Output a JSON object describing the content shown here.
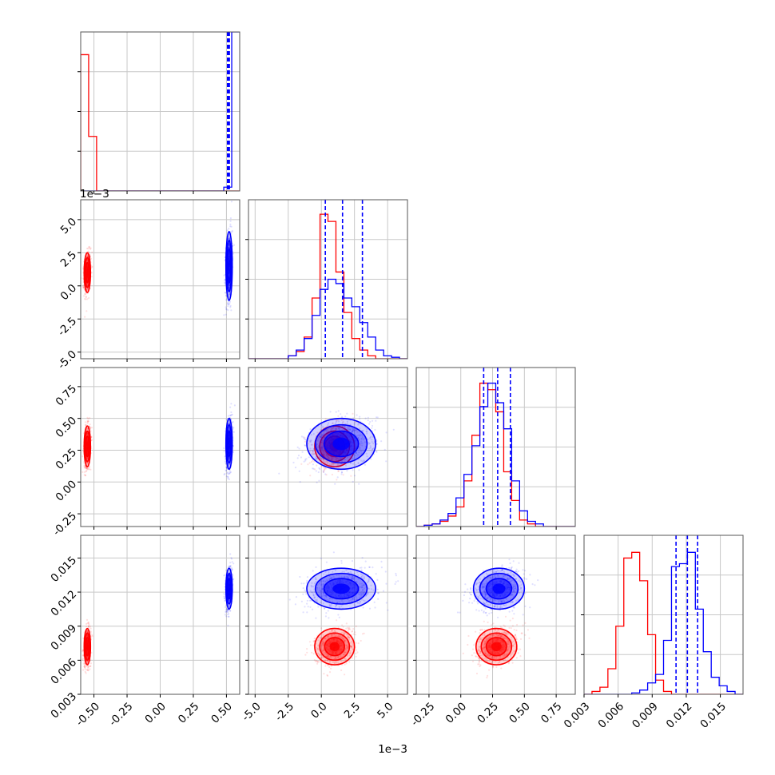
{
  "chart_data": {
    "type": "corner",
    "colors": {
      "red": "#ff0000",
      "blue": "#0000ff",
      "grid": "#c8c8c8",
      "axis": "#555555"
    },
    "grid": true,
    "series": [
      {
        "color": "red",
        "means": [
          -0.55,
          0.001,
          0.28,
          0.0072
        ],
        "sds": [
          0.012,
          0.00075,
          0.08,
          0.0008
        ]
      },
      {
        "color": "blue",
        "means": [
          0.52,
          0.0015,
          0.3,
          0.0123
        ],
        "sds": [
          0.012,
          0.0013,
          0.1,
          0.0009
        ]
      }
    ],
    "quantile_lines": {
      "color": "blue",
      "values": [
        [
          0.508,
          0.515,
          0.522
        ],
        [
          0.0003,
          0.0016,
          0.0031
        ],
        [
          0.18,
          0.29,
          0.39
        ],
        [
          0.0111,
          0.0121,
          0.013
        ]
      ]
    },
    "params": [
      {
        "range": [
          -0.6,
          0.6
        ],
        "ticks": [
          "-0.50",
          "-0.25",
          "0.00",
          "0.25",
          "0.50"
        ],
        "tick_values": [
          -0.5,
          -0.25,
          0.0,
          0.25,
          0.5
        ]
      },
      {
        "range": [
          -0.0055,
          0.0065
        ],
        "ticks": [
          "-5.0",
          "-2.5",
          "0.0",
          "2.5",
          "5.0"
        ],
        "tick_values": [
          -0.005,
          -0.0025,
          0.0,
          0.0025,
          0.005
        ],
        "offset": "1e−3"
      },
      {
        "range": [
          -0.35,
          0.9
        ],
        "ticks": [
          "-0.25",
          "0.00",
          "0.25",
          "0.50",
          "0.75"
        ],
        "tick_values": [
          -0.25,
          0.0,
          0.25,
          0.5,
          0.75
        ]
      },
      {
        "range": [
          0.003,
          0.017
        ],
        "ticks": [
          "0.003",
          "0.006",
          "0.009",
          "0.012",
          "0.015"
        ],
        "tick_values": [
          0.003,
          0.006,
          0.009,
          0.012,
          0.015
        ]
      }
    ],
    "histograms": [
      {
        "edges": [
          -0.6,
          -0.54,
          -0.48,
          -0.42,
          -0.36,
          -0.3,
          -0.24,
          -0.18,
          -0.12,
          -0.06,
          0.0,
          0.06,
          0.12,
          0.18,
          0.24,
          0.3,
          0.36,
          0.42,
          0.48,
          0.54,
          0.6
        ],
        "red": [
          180,
          72,
          0,
          0,
          0,
          0,
          0,
          0,
          0,
          0,
          0,
          0,
          0,
          0,
          0,
          0,
          0,
          0,
          0,
          0
        ],
        "blue": [
          0,
          0,
          0,
          0,
          0,
          0,
          0,
          0,
          0,
          0,
          0,
          0,
          0,
          0,
          0,
          0,
          0,
          0,
          5,
          210
        ],
        "ymax": 210
      },
      {
        "edges": [
          -0.0055,
          -0.0049,
          -0.0043,
          -0.0037,
          -0.0031,
          -0.0025,
          -0.0019,
          -0.0013,
          -0.0007,
          -0.0001,
          0.0005,
          0.0011,
          0.0017,
          0.0023,
          0.0029,
          0.0035,
          0.0041,
          0.0047,
          0.0053,
          0.0059,
          0.0065
        ],
        "red": [
          0,
          0,
          0,
          0,
          0,
          2,
          5,
          15,
          42,
          100,
          95,
          60,
          32,
          14,
          6,
          2,
          0,
          0,
          0,
          0
        ],
        "blue": [
          0,
          0,
          0,
          0,
          0,
          2,
          6,
          14,
          30,
          48,
          55,
          52,
          42,
          36,
          25,
          15,
          6,
          2,
          1,
          0
        ],
        "ymax": 110
      },
      {
        "edges": [
          -0.35,
          -0.2875,
          -0.225,
          -0.1625,
          -0.1,
          -0.0375,
          0.025,
          0.0875,
          0.15,
          0.2125,
          0.275,
          0.3375,
          0.4,
          0.4625,
          0.525,
          0.5875,
          0.65,
          0.7125,
          0.775,
          0.8375,
          0.9
        ],
        "red": [
          0,
          1,
          2,
          4,
          8,
          15,
          35,
          70,
          110,
          105,
          88,
          42,
          20,
          5,
          2,
          0,
          0,
          0,
          0,
          0
        ],
        "blue": [
          0,
          1,
          2,
          5,
          10,
          22,
          40,
          62,
          92,
          110,
          95,
          75,
          35,
          12,
          4,
          2,
          0,
          0,
          0,
          0
        ],
        "ymax": 122
      },
      {
        "edges": [
          0.003,
          0.0037,
          0.0044,
          0.0051,
          0.0058,
          0.0065,
          0.0072,
          0.0079,
          0.0086,
          0.0093,
          0.01,
          0.0107,
          0.0114,
          0.0121,
          0.0128,
          0.0135,
          0.0142,
          0.0149,
          0.0156,
          0.0163,
          0.017
        ],
        "red": [
          0,
          2,
          5,
          18,
          48,
          96,
          100,
          80,
          42,
          10,
          2,
          0,
          0,
          0,
          0,
          0,
          0,
          0,
          0,
          0
        ],
        "blue": [
          0,
          0,
          0,
          0,
          0,
          0,
          1,
          3,
          8,
          14,
          38,
          90,
          92,
          100,
          60,
          30,
          12,
          6,
          2,
          0
        ],
        "ymax": 112
      }
    ]
  }
}
